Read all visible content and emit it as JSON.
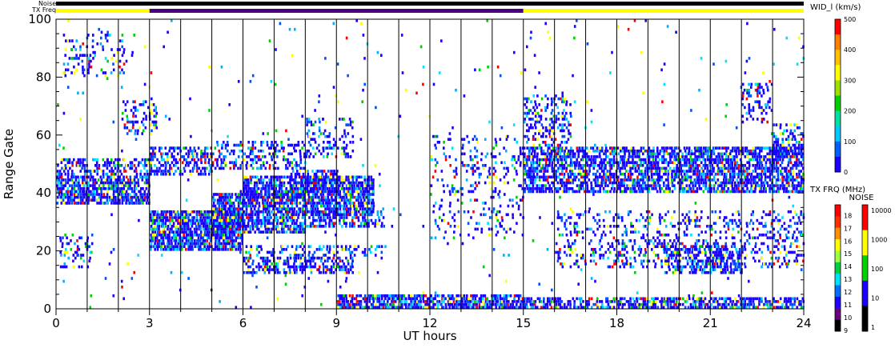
{
  "chart_data": {
    "type": "heatmap",
    "title": "",
    "xlabel": "UT hours",
    "ylabel": "Range Gate",
    "xlim": [
      0,
      24
    ],
    "ylim": [
      0,
      100
    ],
    "xticks": [
      0,
      3,
      6,
      9,
      12,
      15,
      18,
      21,
      24
    ],
    "yticks": [
      0,
      20,
      40,
      60,
      80,
      100
    ],
    "x_minor_ticks_per_hour": 1,
    "grid": "vertical lines every 1 UT hour",
    "top_bars": {
      "noise_label": "Noise",
      "txfreq_label": "TX Freq",
      "noise_color": "#000000",
      "txfreq_segments": [
        {
          "start": 0,
          "end": 3,
          "color": "#ffff00"
        },
        {
          "start": 3,
          "end": 15,
          "color": "#4b0082"
        },
        {
          "start": 15,
          "end": 24,
          "color": "#ffff00"
        }
      ]
    },
    "colorbars": {
      "width": {
        "title": "WID_l (km/s)",
        "ticks": [
          0,
          100,
          200,
          300,
          400,
          500
        ],
        "range": [
          0,
          500
        ],
        "colors": [
          "#1a00ff",
          "#0060ff",
          "#00c8ff",
          "#00e0a0",
          "#00d000",
          "#a0e000",
          "#ffff00",
          "#ffc000",
          "#ff8000",
          "#ff0000"
        ]
      },
      "txfreq": {
        "title": "TX FRQ (MHz)",
        "ticks": [
          9,
          10,
          11,
          12,
          13,
          14,
          15,
          16,
          17,
          18
        ],
        "colors": [
          "#000000",
          "#6a0080",
          "#2200ff",
          "#0070ff",
          "#00e0ff",
          "#00d040",
          "#a0ff40",
          "#ffff00",
          "#ff9000",
          "#ff3000",
          "#ff0000"
        ]
      },
      "noise": {
        "title": "NOISE",
        "ticks": [
          1,
          10,
          100,
          1000,
          10000
        ],
        "scale": "log",
        "colors": [
          "#000000",
          "#1a00ff",
          "#00d000",
          "#ffff00",
          "#ff0000"
        ]
      }
    },
    "series": [
      {
        "values": [
          {
            "t0": 0.0,
            "t1": 3.0,
            "g0": 36,
            "g1": 46,
            "density": 0.8
          },
          {
            "t0": 0.0,
            "t1": 3.0,
            "g0": 46,
            "g1": 52,
            "density": 0.5
          },
          {
            "t0": 0.1,
            "t1": 1.2,
            "g0": 14,
            "g1": 26,
            "density": 0.3
          },
          {
            "t0": 0.2,
            "t1": 2.2,
            "g0": 80,
            "g1": 96,
            "density": 0.2
          },
          {
            "t0": 2.1,
            "t1": 3.2,
            "g0": 60,
            "g1": 72,
            "density": 0.35
          },
          {
            "t0": 3.0,
            "t1": 6.0,
            "g0": 20,
            "g1": 34,
            "density": 0.9
          },
          {
            "t0": 5.0,
            "t1": 8.0,
            "g0": 26,
            "g1": 40,
            "density": 0.85
          },
          {
            "t0": 6.0,
            "t1": 8.0,
            "g0": 38,
            "g1": 46,
            "density": 0.8
          },
          {
            "t0": 3.0,
            "t1": 5.0,
            "g0": 46,
            "g1": 56,
            "density": 0.6
          },
          {
            "t0": 5.0,
            "t1": 8.0,
            "g0": 48,
            "g1": 58,
            "density": 0.4
          },
          {
            "t0": 8.0,
            "t1": 10.2,
            "g0": 32,
            "g1": 46,
            "density": 0.85
          },
          {
            "t0": 8.0,
            "t1": 10.5,
            "g0": 28,
            "g1": 34,
            "density": 0.5
          },
          {
            "t0": 6.0,
            "t1": 9.5,
            "g0": 12,
            "g1": 18,
            "density": 0.6
          },
          {
            "t0": 6.0,
            "t1": 10.5,
            "g0": 18,
            "g1": 22,
            "density": 0.3
          },
          {
            "t0": 8.0,
            "t1": 9.5,
            "g0": 52,
            "g1": 66,
            "density": 0.3
          },
          {
            "t0": 7.5,
            "t1": 9.0,
            "g0": 40,
            "g1": 48,
            "density": 0.7
          },
          {
            "t0": 9.0,
            "t1": 15.0,
            "g0": 0,
            "g1": 5,
            "density": 0.85
          },
          {
            "t0": 15.0,
            "t1": 24.0,
            "g0": 0,
            "g1": 4,
            "density": 0.7
          },
          {
            "t0": 12.0,
            "t1": 15.0,
            "g0": 24,
            "g1": 60,
            "density": 0.15
          },
          {
            "t0": 15.0,
            "t1": 24.0,
            "g0": 40,
            "g1": 56,
            "density": 0.75
          },
          {
            "t0": 15.0,
            "t1": 16.5,
            "g0": 56,
            "g1": 74,
            "density": 0.4
          },
          {
            "t0": 16.0,
            "t1": 24.0,
            "g0": 14,
            "g1": 34,
            "density": 0.25
          },
          {
            "t0": 19.5,
            "t1": 22.0,
            "g0": 12,
            "g1": 22,
            "density": 0.6
          },
          {
            "t0": 22.0,
            "t1": 23.0,
            "g0": 64,
            "g1": 78,
            "density": 0.3
          },
          {
            "t0": 23.0,
            "t1": 24.0,
            "g0": 52,
            "g1": 64,
            "density": 0.5
          },
          {
            "t0": 0.0,
            "t1": 24.0,
            "g0": 0,
            "g1": 100,
            "density": 0.012
          }
        ]
      }
    ]
  }
}
